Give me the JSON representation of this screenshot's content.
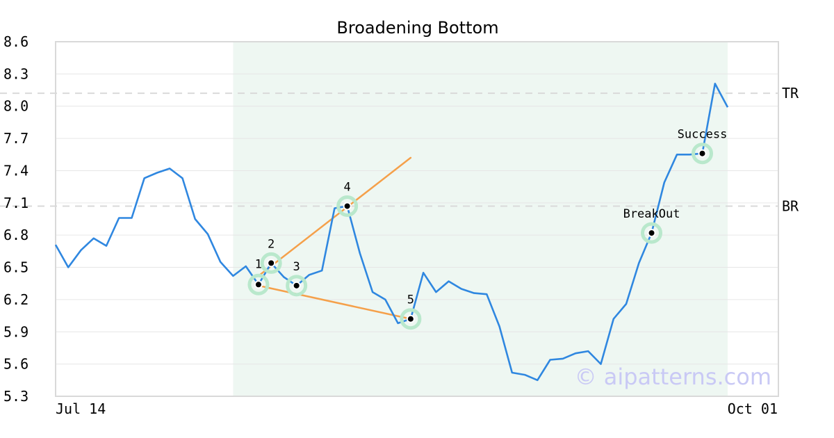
{
  "chart_data": {
    "type": "line",
    "title": "Broadening Bottom",
    "watermark": "© aipatterns.com",
    "ylim": [
      5.3,
      8.6
    ],
    "y_ticks": [
      "8.6",
      "8.3",
      "8.0",
      "7.7",
      "7.4",
      "7.1",
      "6.8",
      "6.5",
      "6.2",
      "5.9",
      "5.6",
      "5.3"
    ],
    "x_start_label": "Jul 14",
    "x_end_label": "Oct 01",
    "grid": true,
    "colors": {
      "line": "#2f87e0",
      "trend": "#f5a04a",
      "marker_halo": "#b9e8cc",
      "highlight": "#eef7f2",
      "ref_line": "#d9d9d9",
      "grid": "#e6e6e6"
    },
    "series": [
      {
        "values": [
          6.71,
          6.5,
          6.66,
          6.77,
          6.7,
          6.96,
          6.96,
          7.33,
          7.38,
          7.42,
          7.33,
          6.95,
          6.81,
          6.55,
          6.42,
          6.51,
          6.34,
          6.54,
          6.41,
          6.33,
          6.43,
          6.47,
          7.05,
          7.07,
          6.63,
          6.27,
          6.2,
          5.98,
          6.02,
          6.45,
          6.27,
          6.37,
          6.3,
          6.26,
          6.25,
          5.95,
          5.52,
          5.5,
          5.45,
          5.64,
          5.65,
          5.7,
          5.72,
          5.6,
          6.02,
          6.16,
          6.54,
          6.82,
          7.29,
          7.55,
          7.55,
          7.56,
          8.21,
          7.99
        ]
      }
    ],
    "highlight_range": {
      "from_index": 14,
      "to_index": 53
    },
    "reference_lines": [
      {
        "label": "TR",
        "value": 8.12
      },
      {
        "label": "BR",
        "value": 7.07
      }
    ],
    "trend_lines": [
      {
        "from": {
          "index": 16,
          "value": 6.42
        },
        "to": {
          "index": 28,
          "value": 7.52
        }
      },
      {
        "from": {
          "index": 16,
          "value": 6.33
        },
        "to": {
          "index": 28,
          "value": 6.02
        }
      }
    ],
    "points": [
      {
        "label": "1",
        "index": 16,
        "value": 6.34
      },
      {
        "label": "2",
        "index": 17,
        "value": 6.54
      },
      {
        "label": "3",
        "index": 19,
        "value": 6.33
      },
      {
        "label": "4",
        "index": 23,
        "value": 7.07
      },
      {
        "label": "5",
        "index": 28,
        "value": 6.02
      },
      {
        "label": "BreakOut",
        "index": 47,
        "value": 6.82
      },
      {
        "label": "Success",
        "index": 51,
        "value": 7.56
      }
    ]
  }
}
